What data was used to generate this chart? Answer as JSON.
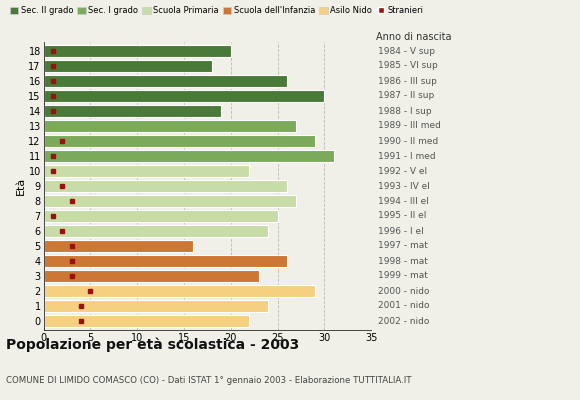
{
  "ages": [
    18,
    17,
    16,
    15,
    14,
    13,
    12,
    11,
    10,
    9,
    8,
    7,
    6,
    5,
    4,
    3,
    2,
    1,
    0
  ],
  "years": [
    "1984 - V sup",
    "1985 - VI sup",
    "1986 - III sup",
    "1987 - II sup",
    "1988 - I sup",
    "1989 - III med",
    "1990 - II med",
    "1991 - I med",
    "1992 - V el",
    "1993 - IV el",
    "1994 - III el",
    "1995 - II el",
    "1996 - I el",
    "1997 - mat",
    "1998 - mat",
    "1999 - mat",
    "2000 - nido",
    "2001 - nido",
    "2002 - nido"
  ],
  "bar_values": [
    20,
    18,
    26,
    30,
    19,
    27,
    29,
    31,
    22,
    26,
    27,
    25,
    24,
    16,
    26,
    23,
    29,
    24,
    22
  ],
  "stranieri": [
    1,
    1,
    1,
    1,
    1,
    0,
    2,
    1,
    1,
    2,
    3,
    1,
    2,
    3,
    3,
    3,
    5,
    4,
    4
  ],
  "colors_by_age": {
    "18": "#4a7a3a",
    "17": "#4a7a3a",
    "16": "#4a7a3a",
    "15": "#4a7a3a",
    "14": "#4a7a3a",
    "13": "#7aaa5a",
    "12": "#7aaa5a",
    "11": "#7aaa5a",
    "10": "#c8dca8",
    "9": "#c8dca8",
    "8": "#c8dca8",
    "7": "#c8dca8",
    "6": "#c8dca8",
    "5": "#cc7733",
    "4": "#cc7733",
    "3": "#cc7733",
    "2": "#f5d080",
    "1": "#f5d080",
    "0": "#f5d080"
  },
  "stranieri_color": "#991111",
  "legend_labels": [
    "Sec. II grado",
    "Sec. I grado",
    "Scuola Primaria",
    "Scuola dell'Infanzia",
    "Asilo Nido",
    "Stranieri"
  ],
  "legend_colors": [
    "#4a7a3a",
    "#7aaa5a",
    "#c8dca8",
    "#cc7733",
    "#f5d080",
    "#991111"
  ],
  "title": "Popolazione per età scolastica - 2003",
  "subtitle": "COMUNE DI LIMIDO COMASCO (CO) - Dati ISTAT 1° gennaio 2003 - Elaborazione TUTTITALIA.IT",
  "ylabel": "Età",
  "right_label": "Anno di nascita",
  "xlim": [
    0,
    35
  ],
  "xticks": [
    0,
    5,
    10,
    15,
    20,
    25,
    30,
    35
  ],
  "background_color": "#f0f0e8",
  "bar_height": 0.82
}
